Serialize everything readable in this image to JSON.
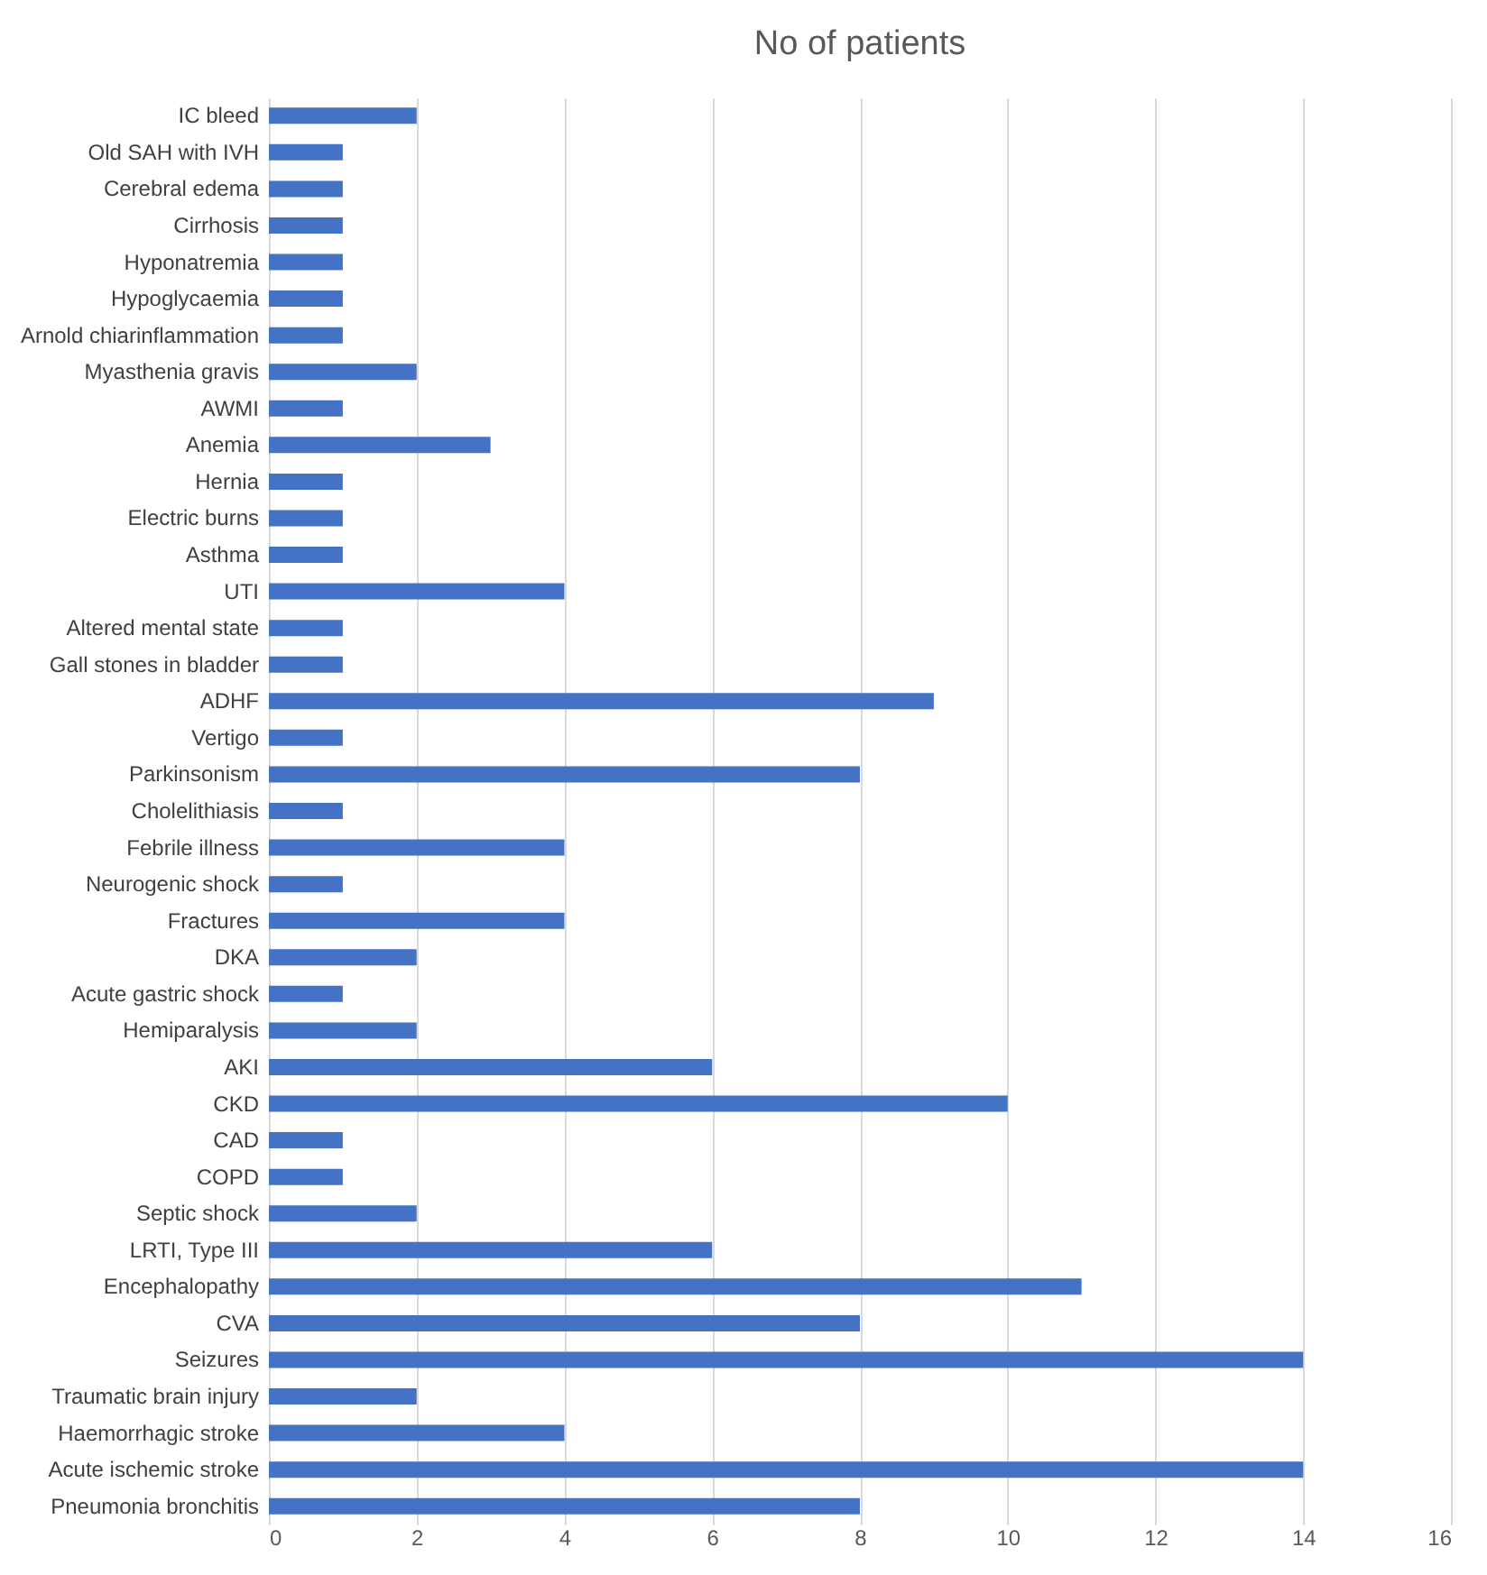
{
  "chart_data": {
    "type": "bar",
    "orientation": "horizontal",
    "title": "No of patients",
    "categories": [
      "IC bleed",
      "Old SAH with IVH",
      "Cerebral edema",
      "Cirrhosis",
      "Hyponatremia",
      "Hypoglycaemia",
      "Arnold chiarinflammation",
      "Myasthenia gravis",
      "AWMI",
      "Anemia",
      "Hernia",
      "Electric burns",
      "Asthma",
      "UTI",
      "Altered mental state",
      "Gall stones in bladder",
      "ADHF",
      "Vertigo",
      "Parkinsonism",
      "Cholelithiasis",
      "Febrile illness",
      "Neurogenic shock",
      "Fractures",
      "DKA",
      "Acute gastric shock",
      "Hemiparalysis",
      "AKI",
      "CKD",
      "CAD",
      "COPD",
      "Septic shock",
      "LRTI, Type III",
      "Encephalopathy",
      "CVA",
      "Seizures",
      "Traumatic brain injury",
      "Haemorrhagic stroke",
      "Acute ischemic stroke",
      "Pneumonia bronchitis"
    ],
    "values": [
      2,
      1,
      1,
      1,
      1,
      1,
      1,
      2,
      1,
      3,
      1,
      1,
      1,
      4,
      1,
      1,
      9,
      1,
      8,
      1,
      4,
      1,
      4,
      2,
      1,
      2,
      6,
      10,
      1,
      1,
      2,
      6,
      11,
      8,
      14,
      2,
      4,
      14,
      8
    ],
    "color": "#4472c4",
    "xlim": [
      0,
      16
    ],
    "xticks": [
      0,
      2,
      4,
      6,
      8,
      10,
      12,
      14,
      16
    ],
    "grid": "x"
  }
}
